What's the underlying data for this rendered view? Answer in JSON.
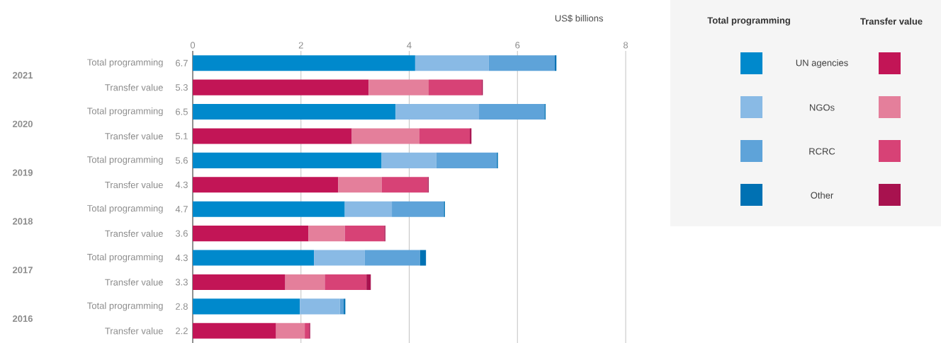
{
  "chart_data": {
    "type": "bar",
    "orientation": "horizontal",
    "stacked": true,
    "xlabel": "US$ billions",
    "categories": [
      "Total programming",
      "Transfer value",
      "Total programming",
      "Transfer value",
      "Total programming",
      "Transfer value",
      "Total programming",
      "Transfer value",
      "Total programming",
      "Transfer value",
      "Total programming",
      "Transfer value"
    ],
    "series": [
      {
        "name": "UN agencies",
        "colors": [
          "#0089cc",
          "#c21556",
          "#0089cc",
          "#c21556",
          "#0089cc",
          "#c21556",
          "#0089cc",
          "#c21556",
          "#0089cc",
          "#c21556",
          "#0089cc",
          "#c21556"
        ],
        "values": [
          4.11,
          3.25,
          3.75,
          2.94,
          3.49,
          2.69,
          2.81,
          2.14,
          2.24,
          1.71,
          1.98,
          1.54
        ]
      },
      {
        "name": "NGOs",
        "colors": [
          "#89bae5",
          "#e47f9b",
          "#89bae5",
          "#e47f9b",
          "#89bae5",
          "#e47f9b",
          "#89bae5",
          "#e47f9b",
          "#89bae5",
          "#e47f9b",
          "#89bae5",
          "#e47f9b"
        ],
        "values": [
          1.36,
          1.11,
          1.54,
          1.25,
          1.01,
          0.8,
          0.87,
          0.67,
          0.94,
          0.73,
          0.74,
          0.53
        ]
      },
      {
        "name": "RCRC",
        "colors": [
          "#5ea3d9",
          "#d74276",
          "#5ea3d9",
          "#d74276",
          "#5ea3d9",
          "#d74276",
          "#5ea3d9",
          "#d74276",
          "#5ea3d9",
          "#d74276",
          "#5ea3d9",
          "#d74276"
        ],
        "values": [
          1.22,
          0.98,
          1.21,
          0.93,
          1.12,
          0.85,
          0.96,
          0.73,
          1.02,
          0.77,
          0.07,
          0.08
        ]
      },
      {
        "name": "Other",
        "colors": [
          "#0071b3",
          "#a8124f",
          "#0071b3",
          "#a8124f",
          "#0071b3",
          "#a8124f",
          "#0071b3",
          "#a8124f",
          "#0071b3",
          "#a8124f",
          "#0071b3",
          "#a8124f"
        ],
        "values": [
          0.03,
          0.02,
          0.02,
          0.03,
          0.02,
          0.02,
          0.02,
          0.02,
          0.11,
          0.08,
          0.03,
          0.02
        ]
      }
    ],
    "totals": [
      "6.7",
      "5.3",
      "6.5",
      "5.1",
      "5.6",
      "4.3",
      "4.7",
      "3.6",
      "4.3",
      "3.3",
      "2.8",
      "2.2"
    ],
    "annotations": [
      "2021",
      "2020",
      "2019",
      "2018",
      "2017",
      "2016",
      "Total programming",
      "Transfer value"
    ],
    "xlim": [
      0,
      8
    ],
    "xticks": [
      0,
      2,
      4,
      6,
      8
    ],
    "grid": "x",
    "legend": "right"
  }
}
